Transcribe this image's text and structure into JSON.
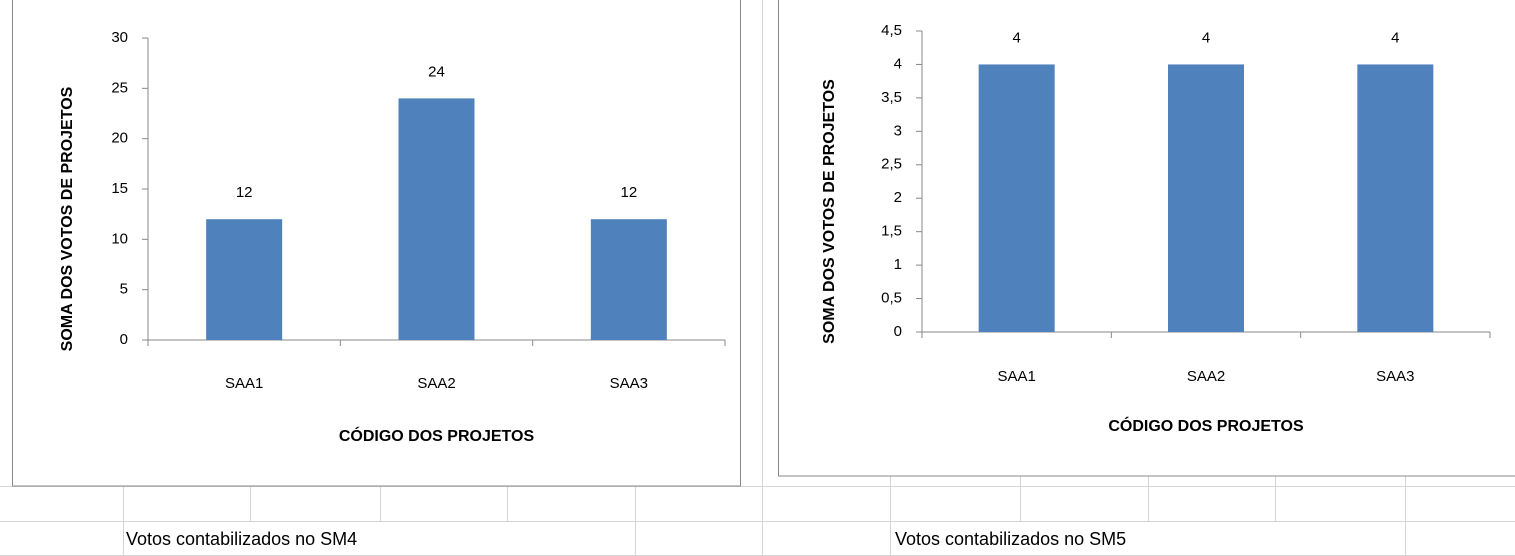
{
  "chart_data": [
    {
      "type": "bar",
      "y_label": "SOMA DOS VOTOS DE PROJETOS",
      "x_label": "CÓDIGO DOS PROJETOS",
      "categories": [
        "SAA1",
        "SAA2",
        "SAA3"
      ],
      "values": [
        12,
        24,
        12
      ],
      "color": "#4f81bd",
      "ylim": [
        0,
        30
      ],
      "yticks": [
        0,
        5,
        10,
        15,
        20,
        25,
        30
      ],
      "grid": false
    },
    {
      "type": "bar",
      "y_label": "SOMA DOS VOTOS DE PROJETOS",
      "x_label": "CÓDIGO DOS PROJETOS",
      "categories": [
        "SAA1",
        "SAA2",
        "SAA3"
      ],
      "values": [
        4,
        4,
        4
      ],
      "color": "#4f81bd",
      "ylim": [
        0,
        4.5
      ],
      "yticks": [
        0,
        {
          "value": 0.5,
          "label": "0,5"
        },
        1,
        {
          "value": 1.5,
          "label": "1,5"
        },
        2,
        {
          "value": 2.5,
          "label": "2,5"
        },
        3,
        {
          "value": 3.5,
          "label": "3,5"
        },
        4,
        {
          "value": 4.5,
          "label": "4,5"
        }
      ],
      "grid": false
    }
  ],
  "cells": [
    "Votos contabilizados no SM4",
    "Votos contabilizados no SM5"
  ]
}
